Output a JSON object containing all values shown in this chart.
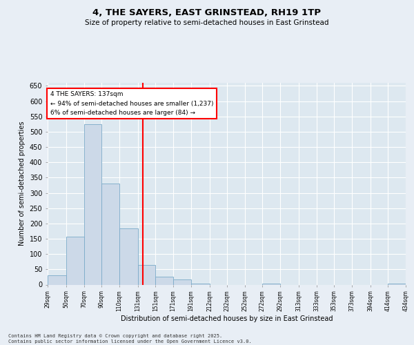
{
  "title": "4, THE SAYERS, EAST GRINSTEAD, RH19 1TP",
  "subtitle": "Size of property relative to semi-detached houses in East Grinstead",
  "xlabel": "Distribution of semi-detached houses by size in East Grinstead",
  "ylabel": "Number of semi-detached properties",
  "bar_color": "#ccd9e8",
  "bar_edge_color": "#7aaac8",
  "background_color": "#dde8f0",
  "grid_color": "#ffffff",
  "fig_color": "#e8eef5",
  "vline_x": 137,
  "vline_color": "red",
  "annotation_text": "4 THE SAYERS: 137sqm\n← 94% of semi-detached houses are smaller (1,237)\n6% of semi-detached houses are larger (84) →",
  "footer_text": "Contains HM Land Registry data © Crown copyright and database right 2025.\nContains public sector information licensed under the Open Government Licence v3.0.",
  "bins": [
    29,
    50,
    70,
    90,
    110,
    131,
    151,
    171,
    191,
    212,
    232,
    252,
    272,
    292,
    313,
    333,
    353,
    373,
    394,
    414,
    434
  ],
  "counts": [
    30,
    157,
    524,
    330,
    185,
    65,
    25,
    18,
    4,
    0,
    0,
    0,
    3,
    0,
    0,
    0,
    0,
    0,
    0,
    4
  ],
  "ylim": [
    0,
    660
  ],
  "yticks": [
    0,
    50,
    100,
    150,
    200,
    250,
    300,
    350,
    400,
    450,
    500,
    550,
    600,
    650
  ],
  "tick_labels": [
    "29sqm",
    "50sqm",
    "70sqm",
    "90sqm",
    "110sqm",
    "131sqm",
    "151sqm",
    "171sqm",
    "191sqm",
    "212sqm",
    "232sqm",
    "252sqm",
    "272sqm",
    "292sqm",
    "313sqm",
    "333sqm",
    "353sqm",
    "373sqm",
    "394sqm",
    "414sqm",
    "434sqm"
  ]
}
